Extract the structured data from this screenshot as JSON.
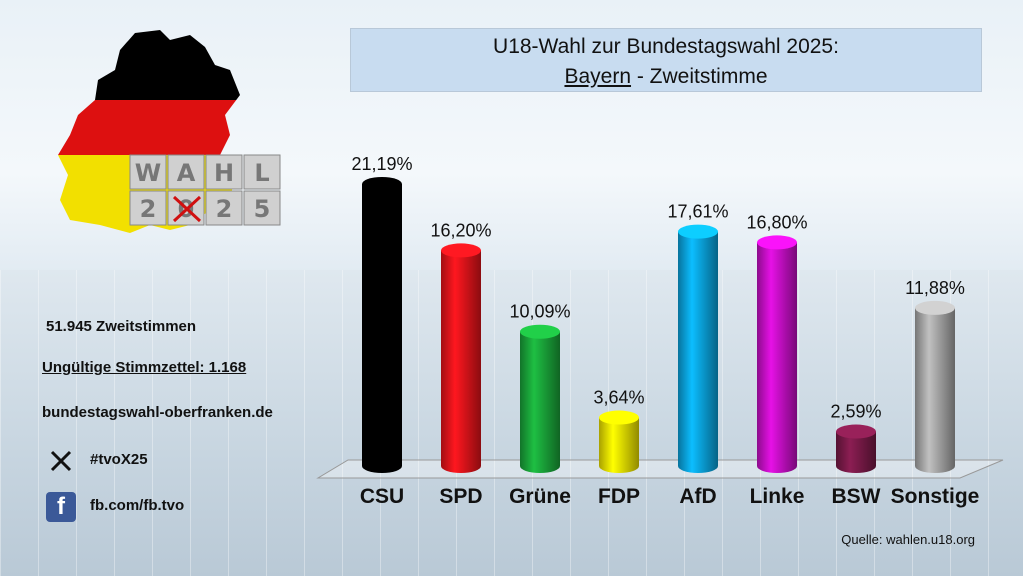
{
  "title": {
    "line1": "U18-Wahl zur Bundestagswahl 2025:",
    "region": "Bayern",
    "line2_rest": " - Zweitstimme"
  },
  "logo": {
    "row1": [
      "W",
      "A",
      "H",
      "L"
    ],
    "row2": [
      "2",
      "0",
      "2",
      "5"
    ]
  },
  "info": {
    "votes": "51.945 Zweitstimmen",
    "invalid": "Ungültige Stimmzettel: 1.168",
    "website": "bundestagswahl-oberfranken.de",
    "x_handle": "#tvoX25",
    "facebook": "fb.com/fb.tvo"
  },
  "source": "Quelle: wahlen.u18.org",
  "chart_data": {
    "type": "bar",
    "categories": [
      "CSU",
      "SPD",
      "Grüne",
      "FDP",
      "AfD",
      "Linke",
      "BSW",
      "Sonstige"
    ],
    "values": [
      21.19,
      16.2,
      10.09,
      3.64,
      17.61,
      16.8,
      2.59,
      11.88
    ],
    "labels": [
      "21,19%",
      "16,20%",
      "10,09%",
      "3,64%",
      "17,61%",
      "16,80%",
      "2,59%",
      "11,88%"
    ],
    "colors": [
      "#000000",
      "#e8141b",
      "#1aa63a",
      "#f2e600",
      "#0aa5e0",
      "#c80fc8",
      "#7a1a48",
      "#a8a8a8"
    ],
    "ylim": [
      0,
      21.19
    ]
  }
}
